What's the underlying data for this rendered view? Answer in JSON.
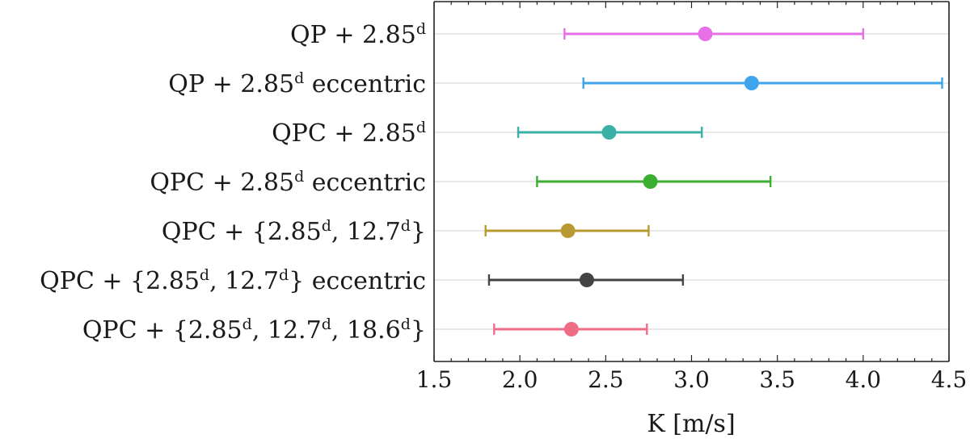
{
  "chart_data": {
    "type": "scatter",
    "orientation": "horizontal-errorbar",
    "title": "",
    "xlabel": "K [m/s]",
    "ylabel": "",
    "xlim": [
      1.5,
      4.5
    ],
    "xticks": [
      "1.5",
      "2.0",
      "2.5",
      "3.0",
      "3.5",
      "4.0",
      "4.5"
    ],
    "grid": "horizontal lines at each category",
    "categories": [
      {
        "parts": [
          [
            "QP + 2.85",
            ""
          ],
          [
            "d",
            "sup"
          ]
        ]
      },
      {
        "parts": [
          [
            "QP + 2.85",
            ""
          ],
          [
            "d",
            "sup"
          ],
          [
            " eccentric",
            ""
          ]
        ]
      },
      {
        "parts": [
          [
            "QPC + 2.85",
            ""
          ],
          [
            "d",
            "sup"
          ]
        ]
      },
      {
        "parts": [
          [
            "QPC + 2.85",
            ""
          ],
          [
            "d",
            "sup"
          ],
          [
            " eccentric",
            ""
          ]
        ]
      },
      {
        "parts": [
          [
            "QPC + {2.85",
            ""
          ],
          [
            "d",
            "sup"
          ],
          [
            ", 12.7",
            ""
          ],
          [
            "d",
            "sup"
          ],
          [
            "}",
            ""
          ]
        ]
      },
      {
        "parts": [
          [
            "QPC + {2.85",
            ""
          ],
          [
            "d",
            "sup"
          ],
          [
            ", 12.7",
            ""
          ],
          [
            "d",
            "sup"
          ],
          [
            "} eccentric",
            ""
          ]
        ]
      },
      {
        "parts": [
          [
            "QPC + {2.85",
            ""
          ],
          [
            "d",
            "sup"
          ],
          [
            ", 12.7",
            ""
          ],
          [
            "d",
            "sup"
          ],
          [
            ", 18.6",
            ""
          ],
          [
            "d",
            "sup"
          ],
          [
            "}",
            ""
          ]
        ]
      }
    ],
    "points": [
      {
        "value": 3.08,
        "low": 2.26,
        "high": 4.0,
        "color": "#e76fe8"
      },
      {
        "value": 3.35,
        "low": 2.37,
        "high": 4.46,
        "color": "#3ea4ec"
      },
      {
        "value": 2.52,
        "low": 1.99,
        "high": 3.06,
        "color": "#3ab0a6"
      },
      {
        "value": 2.76,
        "low": 2.1,
        "high": 3.46,
        "color": "#3cae32"
      },
      {
        "value": 2.28,
        "low": 1.8,
        "high": 2.75,
        "color": "#b99a32"
      },
      {
        "value": 2.39,
        "low": 1.82,
        "high": 2.95,
        "color": "#444444"
      },
      {
        "value": 2.3,
        "low": 1.85,
        "high": 2.74,
        "color": "#ee6d87"
      }
    ]
  }
}
